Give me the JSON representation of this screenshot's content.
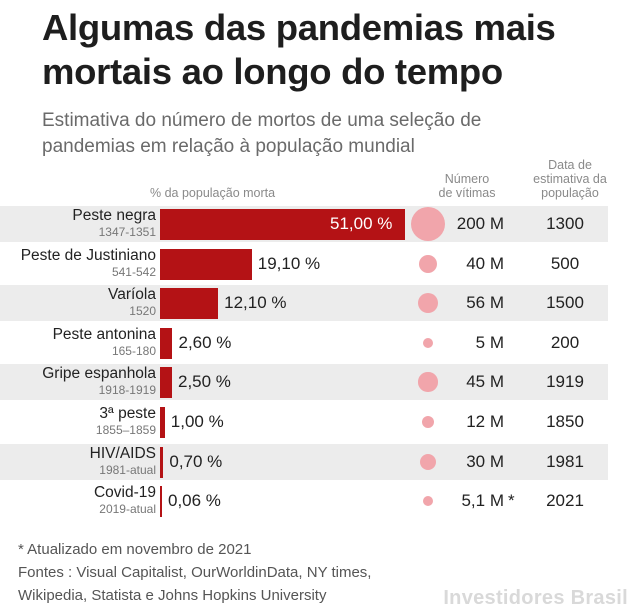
{
  "header": {
    "title_line1": "Algumas das pandemias mais",
    "title_line2": "mortais ao longo do tempo",
    "subtitle_line1": "Estimativa do número de mortos de uma seleção de",
    "subtitle_line2": "pandemias em relação à população mundial"
  },
  "columns": {
    "pct": "% da população morta",
    "victims_line1": "Número",
    "victims_line2": "de vítimas",
    "date_line1": "Data de",
    "date_line2": "estimativa da",
    "date_line3": "população"
  },
  "colors": {
    "bar": "#b41215",
    "bubble": "#f1a5ab",
    "shade": "#ececec"
  },
  "chart_data": {
    "type": "bar",
    "orientation": "horizontal",
    "xlim": [
      0,
      51
    ],
    "categories": [
      "Peste negra",
      "Peste de Justiniano",
      "Varíola",
      "Peste antonina",
      "Gripe espanhola",
      "3ª peste",
      "HIV/AIDS",
      "Covid-19"
    ],
    "rows": [
      {
        "name": "Peste negra",
        "years": "1347-1351",
        "pct": 51.0,
        "pct_label": "51,00 %",
        "victims": 200,
        "victims_label": "200 M",
        "date": "1300"
      },
      {
        "name": "Peste de Justiniano",
        "years": "541-542",
        "pct": 19.1,
        "pct_label": "19,10 %",
        "victims": 40,
        "victims_label": "40 M",
        "date": "500"
      },
      {
        "name": "Varíola",
        "years": "1520",
        "pct": 12.1,
        "pct_label": "12,10 %",
        "victims": 56,
        "victims_label": "56 M",
        "date": "1500"
      },
      {
        "name": "Peste antonina",
        "years": "165-180",
        "pct": 2.6,
        "pct_label": "2,60 %",
        "victims": 5,
        "victims_label": "5 M",
        "date": "200"
      },
      {
        "name": "Gripe espanhola",
        "years": "1918-1919",
        "pct": 2.5,
        "pct_label": "2,50 %",
        "victims": 45,
        "victims_label": "45 M",
        "date": "1919"
      },
      {
        "name": "3ª peste",
        "years": "1855–1859",
        "pct": 1.0,
        "pct_label": "1,00 %",
        "victims": 12,
        "victims_label": "12 M",
        "date": "1850"
      },
      {
        "name": "HIV/AIDS",
        "years": "1981-atual",
        "pct": 0.7,
        "pct_label": "0,70 %",
        "victims": 30,
        "victims_label": "30 M",
        "date": "1981"
      },
      {
        "name": "Covid-19",
        "years": "2019-atual",
        "pct": 0.06,
        "pct_label": "0,06 %",
        "victims": 5.1,
        "victims_label": "5,1 M",
        "victims_note": "*",
        "date": "2021"
      }
    ]
  },
  "footer": {
    "note": "* Atualizado em novembro de 2021",
    "sources_line1": "Fontes : Visual Capitalist, OurWorldinData, NY times,",
    "sources_line2": "Wikipedia, Statista e Johns Hopkins University",
    "brand": "Investidores Brasil"
  }
}
